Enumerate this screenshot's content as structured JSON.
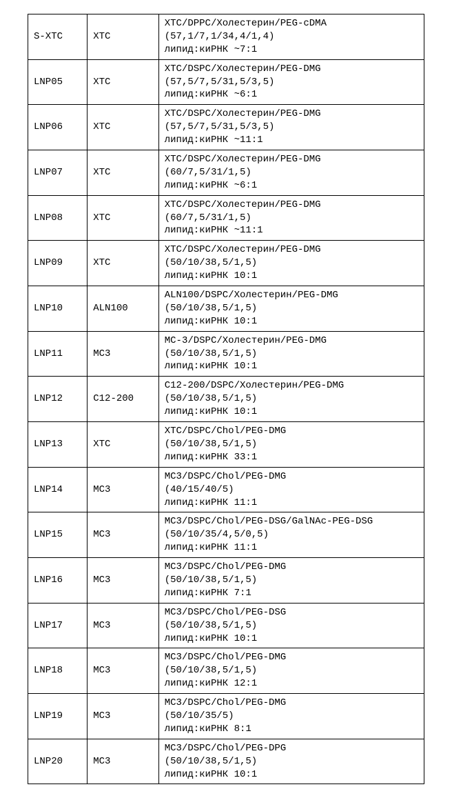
{
  "table": {
    "columns": [
      "id",
      "lipid",
      "composition"
    ],
    "col_widths_pct": [
      15,
      18,
      67
    ],
    "border_color": "#000000",
    "background_color": "#ffffff",
    "font_family": "Courier New",
    "font_size_pt": 11,
    "rows": [
      {
        "id": "S-XTC",
        "lipid": "XTC",
        "lines": [
          "XTC/DPPC/Холестерин/PEG-cDMA",
          "(57,1/7,1/34,4/1,4)",
          "липид:киРНК ~7:1"
        ]
      },
      {
        "id": "LNP05",
        "lipid": "XTC",
        "lines": [
          "XTC/DSPC/Холестерин/PEG-DMG",
          "(57,5/7,5/31,5/3,5)",
          "липид:киРНК ~6:1"
        ]
      },
      {
        "id": "LNP06",
        "lipid": "XTC",
        "lines": [
          "XTC/DSPC/Холестерин/PEG-DMG",
          "(57,5/7,5/31,5/3,5)",
          "липид:киРНК ~11:1"
        ]
      },
      {
        "id": "LNP07",
        "lipid": "XTC",
        "lines": [
          "XTC/DSPC/Холестерин/PEG-DMG",
          "(60/7,5/31/1,5)",
          "липид:киРНК ~6:1"
        ]
      },
      {
        "id": "LNP08",
        "lipid": "XTC",
        "lines": [
          "XTC/DSPC/Холестерин/PEG-DMG",
          "(60/7,5/31/1,5)",
          "липид:киРНК ~11:1"
        ]
      },
      {
        "id": "LNP09",
        "lipid": "XTC",
        "lines": [
          "XTC/DSPC/Холестерин/PEG-DMG",
          "(50/10/38,5/1,5)",
          "липид:киРНК 10:1"
        ]
      },
      {
        "id": "LNP10",
        "lipid": "ALN100",
        "lines": [
          "ALN100/DSPC/Холестерин/PEG-DMG",
          "(50/10/38,5/1,5)",
          "липид:киРНК 10:1"
        ]
      },
      {
        "id": "LNP11",
        "lipid": "MC3",
        "lines": [
          "MC-3/DSPC/Холестерин/PEG-DMG",
          "(50/10/38,5/1,5)",
          "липид:киРНК 10:1"
        ]
      },
      {
        "id": "LNP12",
        "lipid": "C12-200",
        "lines": [
          "C12-200/DSPC/Холестерин/PEG-DMG",
          "(50/10/38,5/1,5)",
          "липид:киРНК 10:1"
        ]
      },
      {
        "id": "LNP13",
        "lipid": "XTC",
        "lines": [
          "XTC/DSPC/Chol/PEG-DMG",
          "(50/10/38,5/1,5)",
          "липид:киРНК 33:1"
        ]
      },
      {
        "id": "LNP14",
        "lipid": "MC3",
        "lines": [
          "MC3/DSPC/Chol/PEG-DMG",
          "(40/15/40/5)",
          "липид:киРНК 11:1"
        ]
      },
      {
        "id": "LNP15",
        "lipid": "MC3",
        "lines": [
          "MC3/DSPC/Chol/PEG-DSG/GalNAc-PEG-DSG",
          "(50/10/35/4,5/0,5)",
          "липид:киРНК 11:1"
        ]
      },
      {
        "id": "LNP16",
        "lipid": "MC3",
        "lines": [
          "MC3/DSPC/Chol/PEG-DMG",
          "(50/10/38,5/1,5)",
          "липид:киРНК 7:1"
        ]
      },
      {
        "id": "LNP17",
        "lipid": "MC3",
        "lines": [
          "MC3/DSPC/Chol/PEG-DSG",
          "(50/10/38,5/1,5)",
          "липид:киРНК 10:1"
        ]
      },
      {
        "id": "LNP18",
        "lipid": "MC3",
        "lines": [
          "MC3/DSPC/Chol/PEG-DMG",
          "(50/10/38,5/1,5)",
          "липид:киРНК 12:1"
        ]
      },
      {
        "id": "LNP19",
        "lipid": "MC3",
        "lines": [
          "MC3/DSPC/Chol/PEG-DMG",
          "(50/10/35/5)",
          "липид:киРНК 8:1"
        ]
      },
      {
        "id": "LNP20",
        "lipid": "MC3",
        "lines": [
          "MC3/DSPC/Chol/PEG-DPG",
          "(50/10/38,5/1,5)",
          "липид:киРНК 10:1"
        ]
      }
    ]
  }
}
